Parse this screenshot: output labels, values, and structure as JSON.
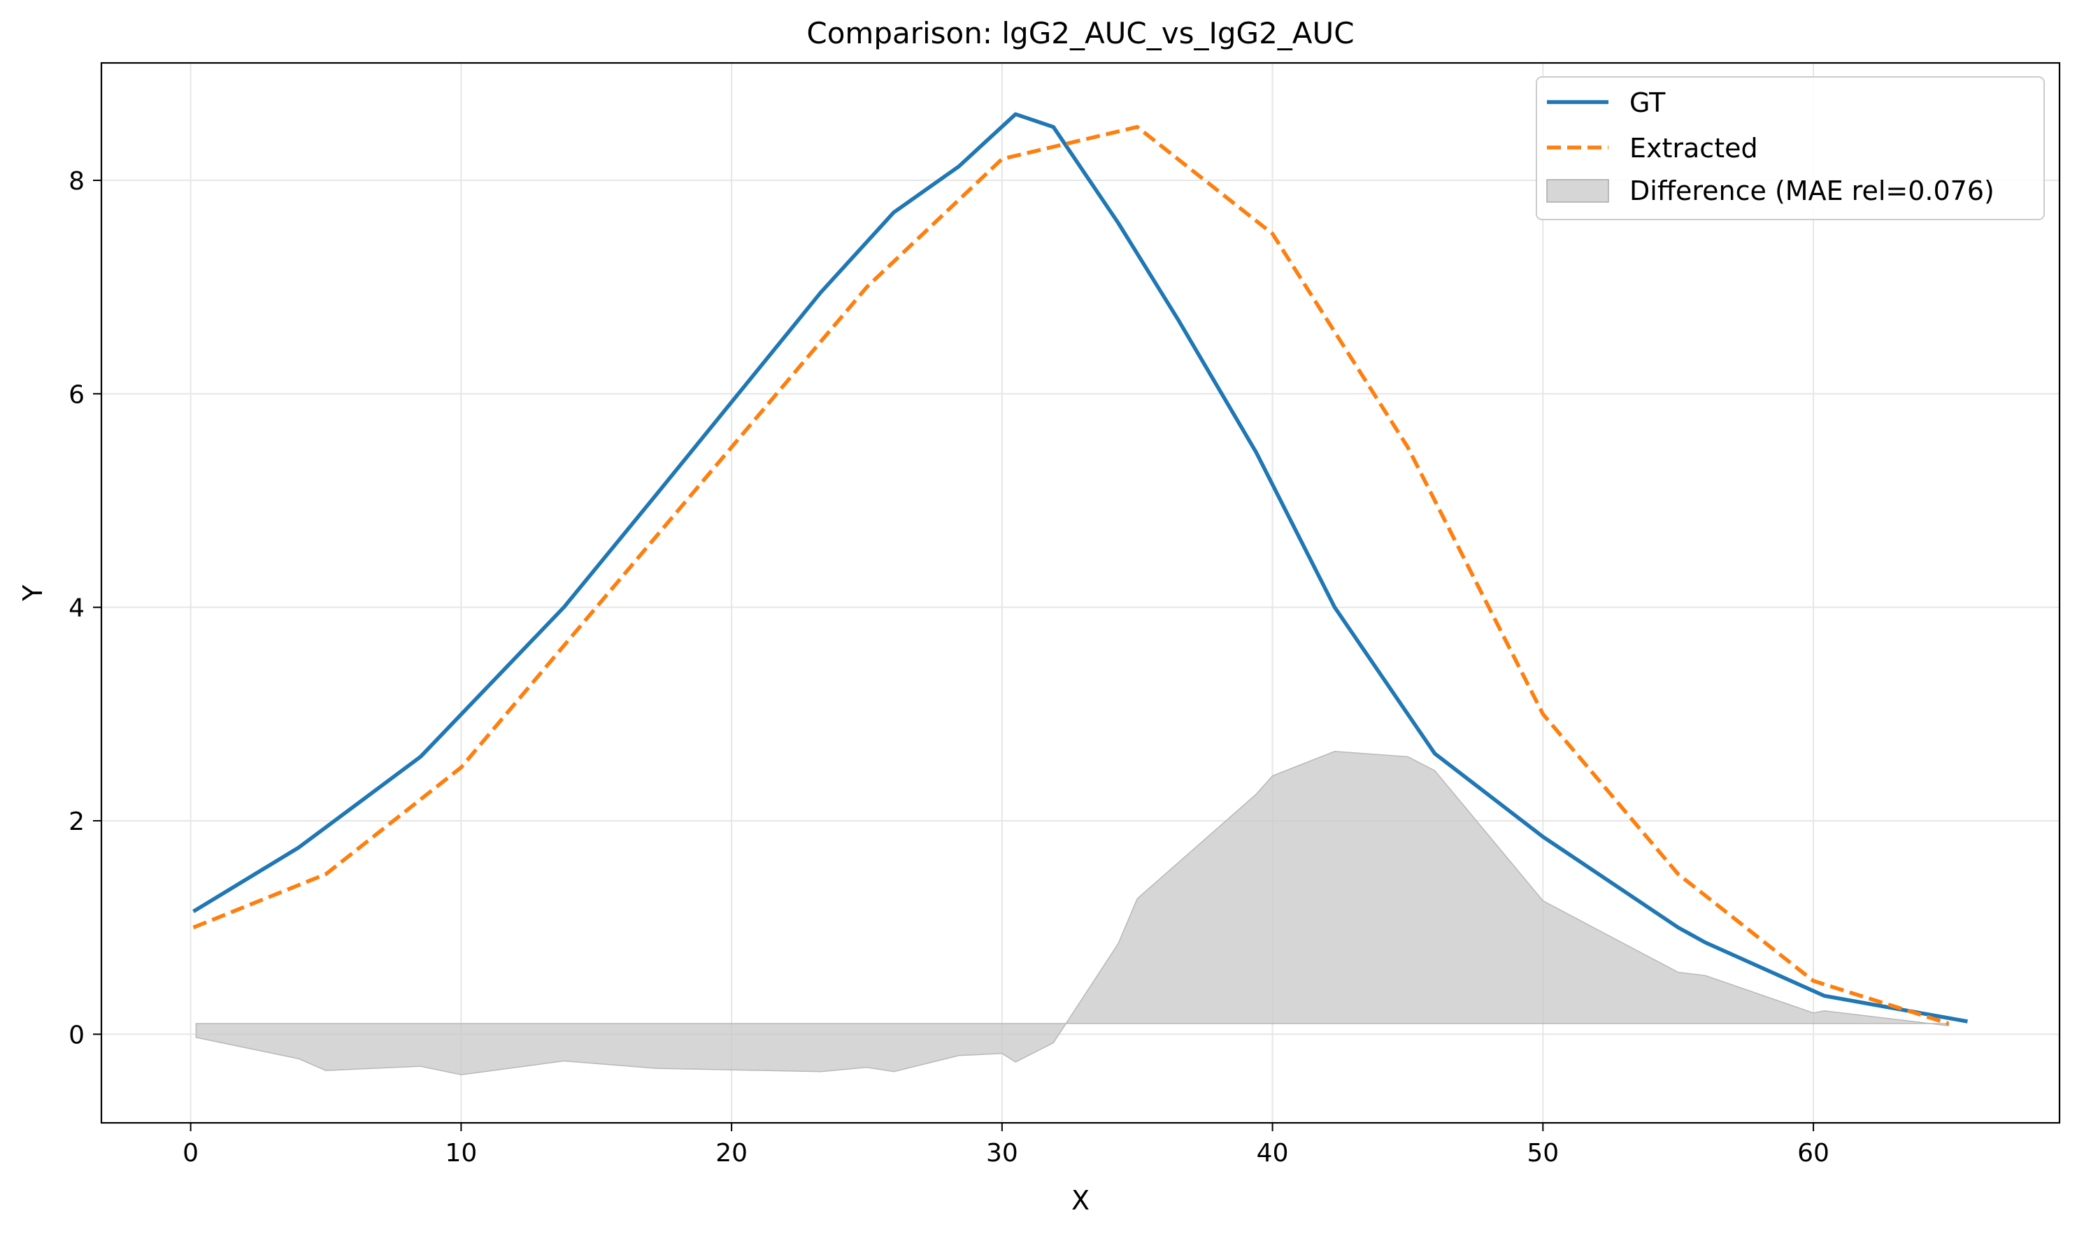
{
  "chart_data": {
    "type": "line",
    "title": "Comparison: lgG2_AUC_vs_IgG2_AUC",
    "xlabel": "X",
    "ylabel": "Y",
    "xlim": [
      -3.3,
      69.1
    ],
    "ylim": [
      -0.83,
      9.1
    ],
    "xticks": [
      0,
      10,
      20,
      30,
      40,
      50,
      60
    ],
    "yticks": [
      0,
      2,
      4,
      6,
      8
    ],
    "grid": true,
    "legend_position": "top-right",
    "series": [
      {
        "name": "GT",
        "color": "#1f77b4",
        "style": "solid",
        "x": [
          0.1,
          4,
          8.5,
          13.8,
          17.2,
          23.3,
          26,
          28.4,
          30.5,
          31.9,
          34.3,
          36.5,
          39.4,
          42.3,
          46,
          50,
          55,
          56,
          60.4,
          65.7
        ],
        "y": [
          1.15,
          1.75,
          2.6,
          4.0,
          5.05,
          6.95,
          7.7,
          8.13,
          8.62,
          8.5,
          7.6,
          6.7,
          5.45,
          4.0,
          2.63,
          1.85,
          1.0,
          0.86,
          0.36,
          0.12
        ]
      },
      {
        "name": "Extracted",
        "color": "#ff7f0e",
        "style": "dashed",
        "x": [
          0.1,
          5,
          10,
          15,
          20,
          25,
          30,
          35,
          40,
          45,
          50,
          55,
          60,
          65
        ],
        "y": [
          1.0,
          1.5,
          2.5,
          4.0,
          5.5,
          7.0,
          8.2,
          8.5,
          7.5,
          5.5,
          3.0,
          1.5,
          0.5,
          0.1
        ]
      }
    ],
    "difference": {
      "name": "Difference (MAE rel=0.076)",
      "color": "#c8c8c8",
      "baseline": 0.1,
      "x": [
        0.2,
        4,
        5,
        8.5,
        10,
        13.8,
        17.2,
        23.3,
        25,
        26,
        28.4,
        30,
        30.5,
        31.9,
        34.3,
        35,
        39.4,
        40,
        42.3,
        45,
        46,
        50,
        55,
        56,
        60,
        60.4,
        65
      ],
      "y": [
        -0.03,
        -0.23,
        -0.34,
        -0.3,
        -0.38,
        -0.25,
        -0.32,
        -0.35,
        -0.31,
        -0.35,
        -0.2,
        -0.18,
        -0.26,
        -0.08,
        0.85,
        1.27,
        2.25,
        2.42,
        2.65,
        2.6,
        2.47,
        1.25,
        0.58,
        0.55,
        0.2,
        0.22,
        0.08
      ]
    }
  }
}
